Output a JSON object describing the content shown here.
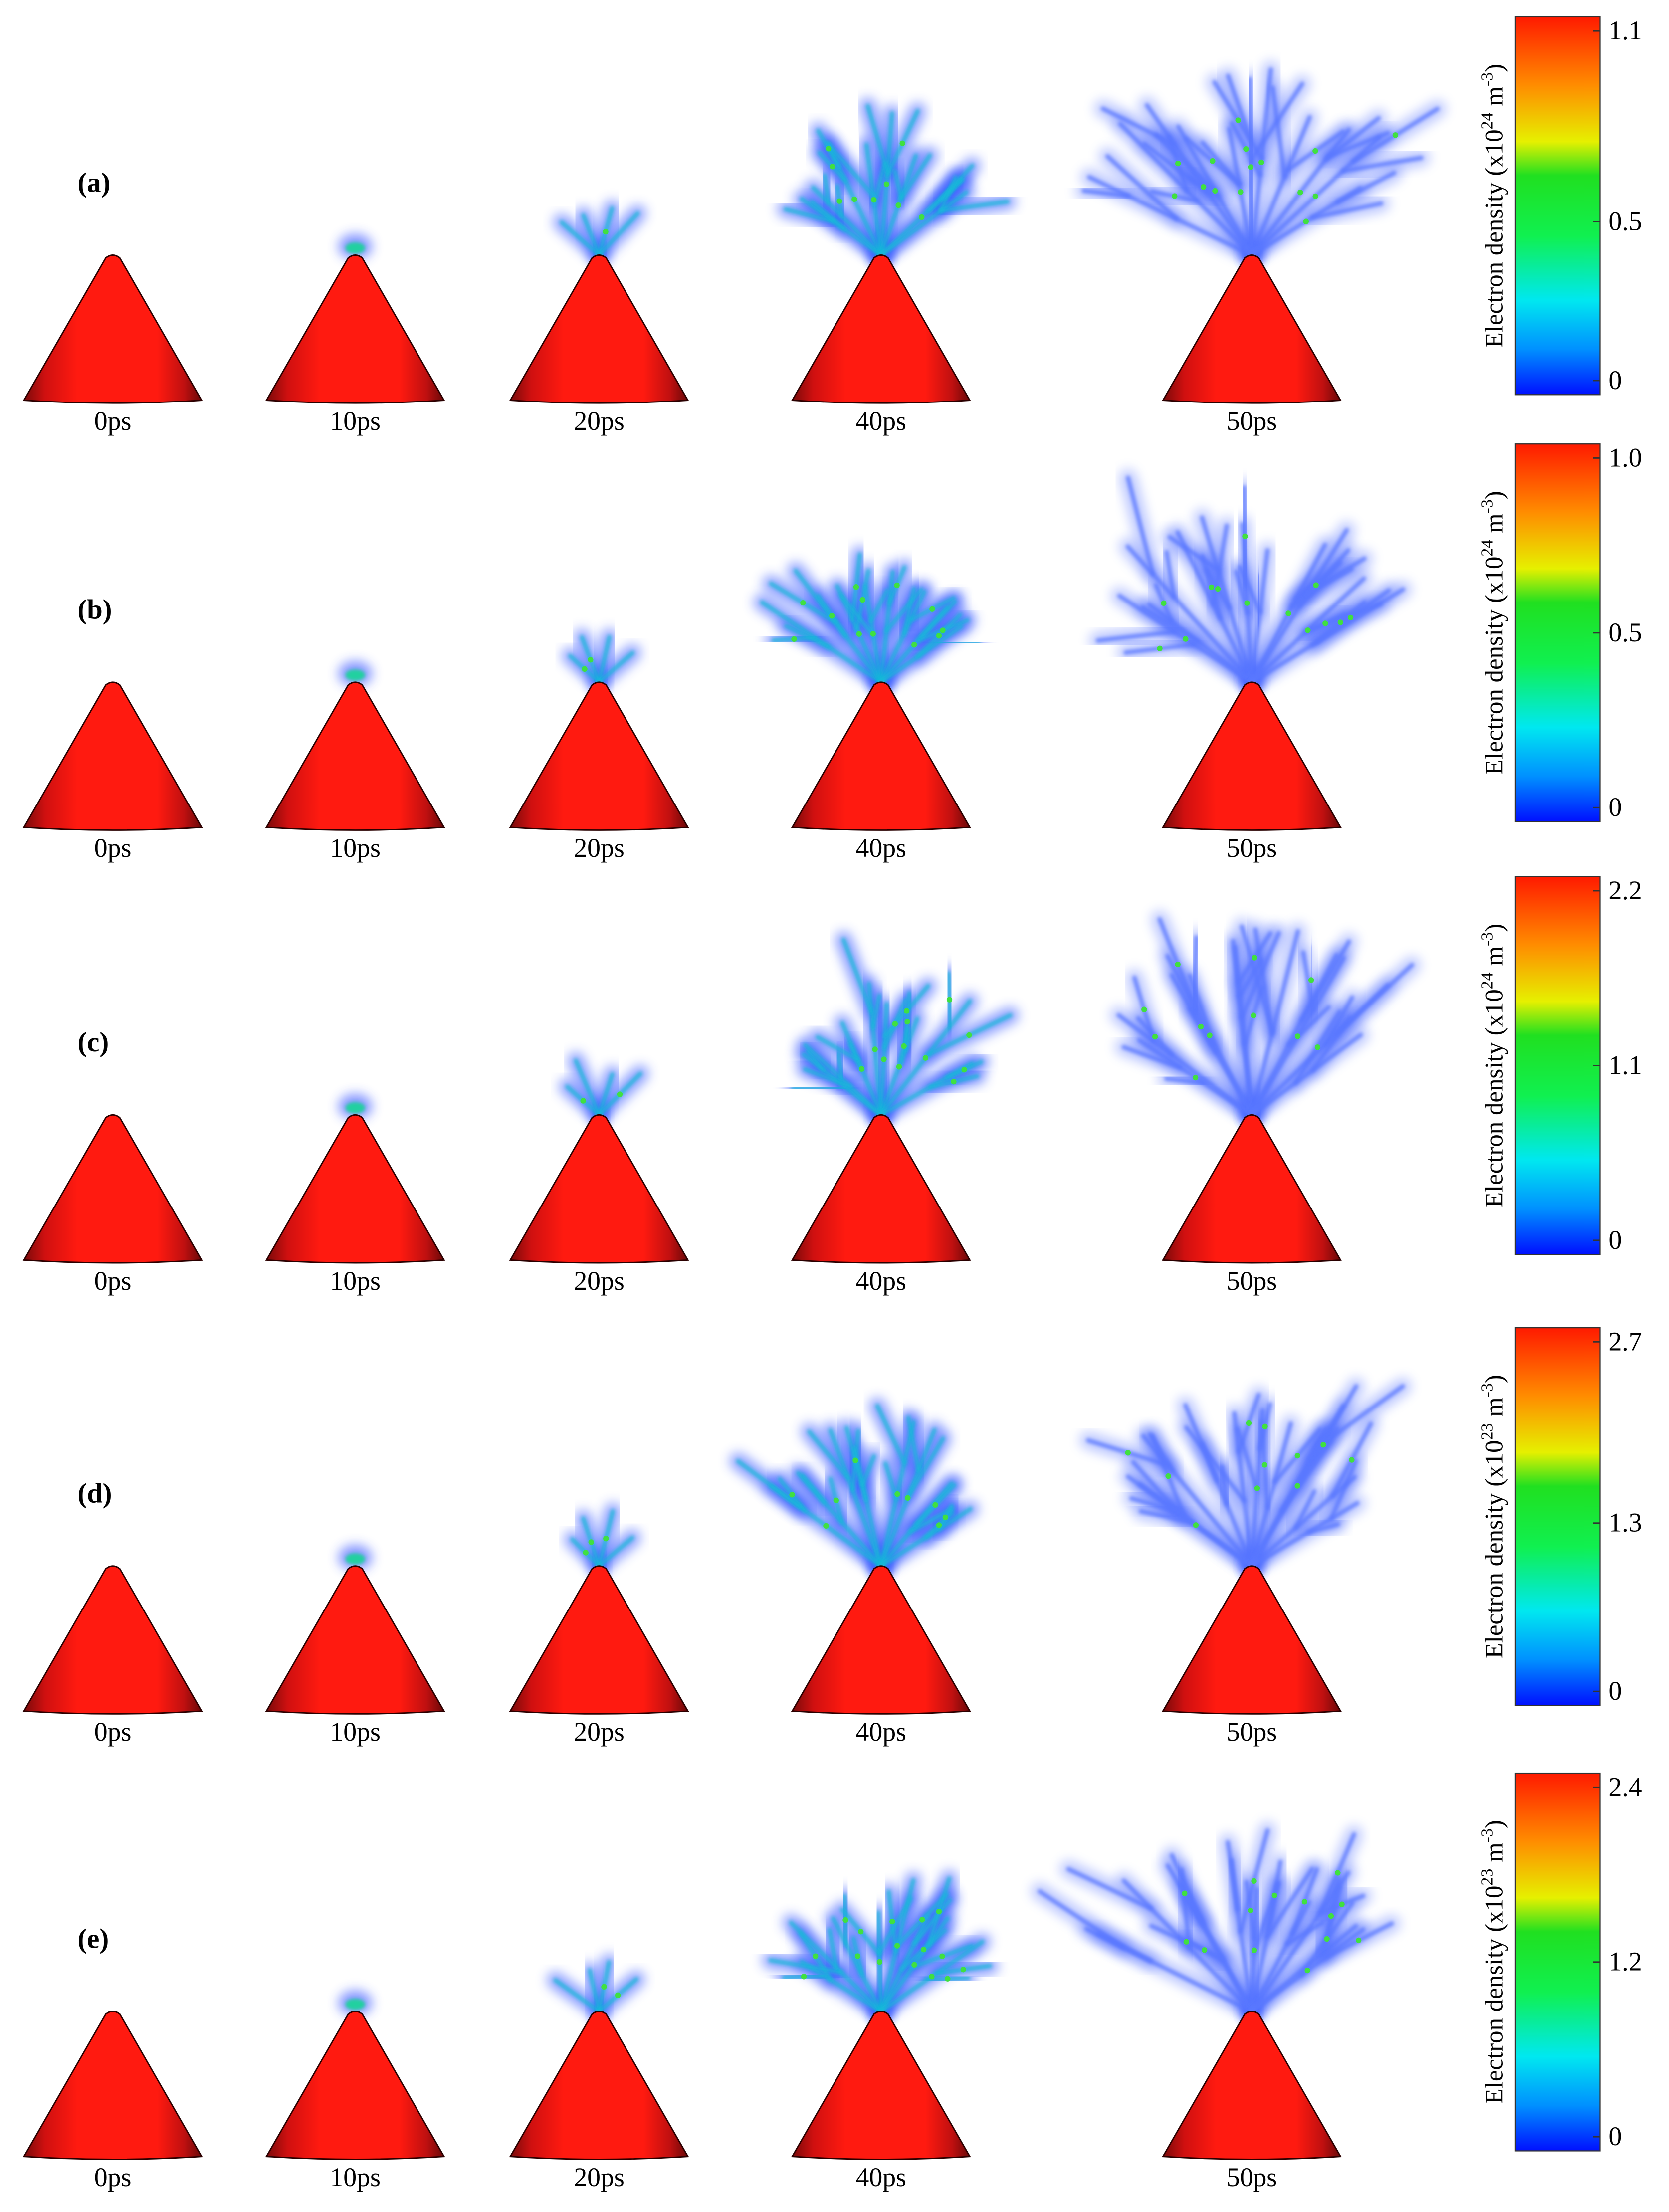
{
  "rows": [
    {
      "label": "(a)",
      "times": [
        "0ps",
        "10ps",
        "20ps",
        "40ps",
        "50ps"
      ],
      "colorbar": {
        "title": {
          "prefix": "Electron density (x10",
          "exponent": "24",
          "unit": " m",
          "unit_exponent": "-3",
          "suffix": ")"
        },
        "lim": [
          0,
          1.1
        ],
        "ticks": [
          0,
          0.5,
          1.1
        ]
      }
    },
    {
      "label": "(b)",
      "times": [
        "0ps",
        "10ps",
        "20ps",
        "40ps",
        "50ps"
      ],
      "colorbar": {
        "title": {
          "prefix": "Electron density (x10",
          "exponent": "24",
          "unit": " m",
          "unit_exponent": "-3",
          "suffix": ")"
        },
        "lim": [
          0,
          1
        ],
        "ticks": [
          0,
          0.5,
          {
            "value": 1,
            "label": "1.0"
          }
        ]
      }
    },
    {
      "label": "(c)",
      "times": [
        "0ps",
        "10ps",
        "20ps",
        "40ps",
        "50ps"
      ],
      "colorbar": {
        "title": {
          "prefix": "Electron density (x10",
          "exponent": "24",
          "unit": " m",
          "unit_exponent": "-3",
          "suffix": ")"
        },
        "lim": [
          0,
          2.2
        ],
        "ticks": [
          0,
          1.1,
          2.2
        ]
      }
    },
    {
      "label": "(d)",
      "times": [
        "0ps",
        "10ps",
        "20ps",
        "40ps",
        "50ps"
      ],
      "colorbar": {
        "title": {
          "prefix": "Electron density (x10",
          "exponent": "23",
          "unit": " m",
          "unit_exponent": "-3",
          "suffix": ")"
        },
        "lim": [
          0,
          2.7
        ],
        "ticks": [
          0,
          1.3,
          2.7
        ]
      }
    },
    {
      "label": "(e)",
      "times": [
        "0ps",
        "10ps",
        "20ps",
        "40ps",
        "50ps"
      ],
      "colorbar": {
        "title": {
          "prefix": "Electron density (x10",
          "exponent": "23",
          "unit": " m",
          "unit_exponent": "-3",
          "suffix": ")"
        },
        "lim": [
          0,
          2.4
        ],
        "ticks": [
          0,
          1.2,
          2.4
        ]
      }
    }
  ]
}
